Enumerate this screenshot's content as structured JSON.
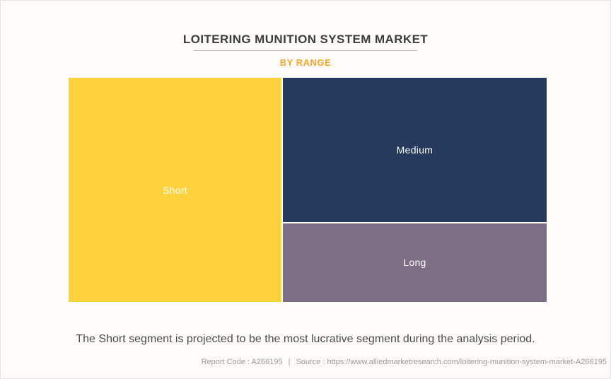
{
  "page": {
    "background": "#FDFCF9",
    "border_color": "#E7E5E2"
  },
  "header": {
    "title": "LOITERING MUNITION SYSTEM MARKET",
    "subtitle": "BY RANGE",
    "title_color": "#3D3D3D",
    "subtitle_color": "#F8A62A",
    "divider_color": "#BDBDBD"
  },
  "chart_data": {
    "type": "treemap",
    "title": "LOITERING MUNITION SYSTEM MARKET",
    "grouping": "BY RANGE",
    "values_labeled": false,
    "legend": "none",
    "segments": [
      {
        "label": "Short",
        "color": "#FDD23C",
        "text_color": "#FFFFFF",
        "share_pct_estimated": 45,
        "rect": {
          "left": "0%",
          "top": "0%",
          "width": "44.53%",
          "height": "100%"
        }
      },
      {
        "label": "Medium",
        "color": "#253A5C",
        "text_color": "#FFFFFF",
        "share_pct_estimated": 36,
        "rect": {
          "left": "44.82%",
          "top": "0%",
          "width": "55.18%",
          "height": "64.35%"
        }
      },
      {
        "label": "Long",
        "color": "#7D6E85",
        "text_color": "#FFFFFF",
        "share_pct_estimated": 19,
        "rect": {
          "left": "44.82%",
          "top": "64.98%",
          "width": "55.18%",
          "height": "35.02%"
        }
      }
    ]
  },
  "caption": {
    "text": "The Short segment is projected to be the most lucrative segment during the analysis period.",
    "color": "#4B4B4B"
  },
  "footer": {
    "report_code": "Report Code : A266195",
    "separator": "|",
    "source": "Source : https://www.alliedmarketresearch.com/loitering-munition-system-market-A266195",
    "color": "#9B9B9B"
  }
}
